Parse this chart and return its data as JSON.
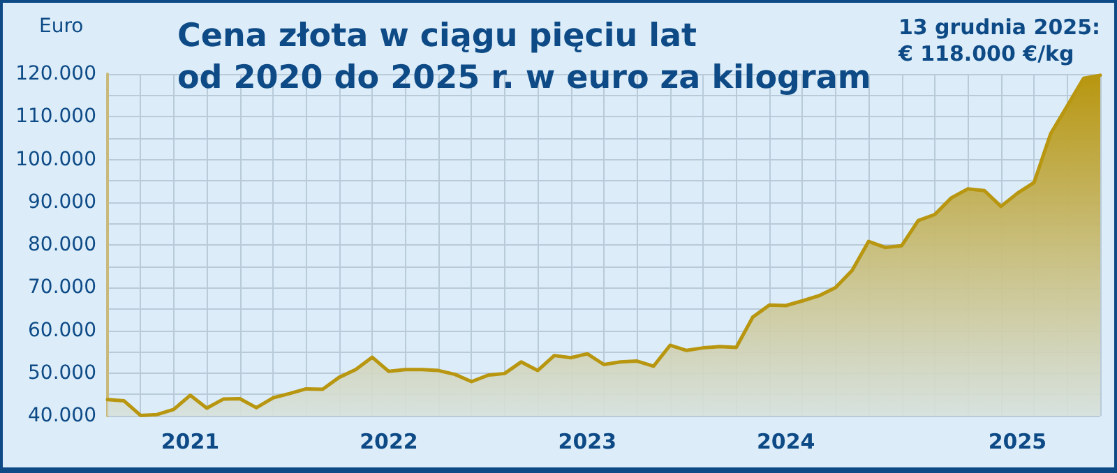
{
  "chart_data": {
    "type": "area",
    "title": "Cena złota w ciągu pięciu lat\nod 2020 do 2025 r. w euro za kilogram",
    "ylabel": "Euro",
    "annotations": [
      "13 grudnia 2025:\n€ 118.000 €/kg"
    ],
    "categories": [
      null,
      null,
      null,
      null,
      null,
      "2021",
      null,
      null,
      null,
      null,
      null,
      null,
      null,
      null,
      null,
      null,
      null,
      "2022",
      null,
      null,
      null,
      null,
      null,
      null,
      null,
      null,
      null,
      null,
      null,
      "2023",
      null,
      null,
      null,
      null,
      null,
      null,
      null,
      null,
      null,
      null,
      null,
      "2024",
      null,
      null,
      null,
      null,
      null,
      null,
      null,
      null,
      null,
      null,
      null,
      null,
      null,
      "2025",
      null,
      null,
      null,
      null,
      null
    ],
    "series": [
      {
        "color": "#b8960f",
        "values": [
          43800,
          43500,
          40100,
          40300,
          41500,
          44800,
          41800,
          43900,
          44000,
          41900,
          44200,
          45200,
          46300,
          46200,
          49000,
          50800,
          53700,
          50400,
          50800,
          50800,
          50600,
          49700,
          48000,
          49500,
          49900,
          52600,
          50600,
          54100,
          53600,
          54500,
          52000,
          52600,
          52800,
          51600,
          56500,
          55300,
          55900,
          56200,
          56000,
          63100,
          65900,
          65800,
          66900,
          68100,
          70000,
          74000,
          80800,
          79400,
          79800,
          85700,
          87100,
          91000,
          93100,
          92700,
          89000,
          92100,
          94600,
          106000,
          112500,
          119000,
          119700
        ]
      }
    ],
    "ylim": [
      40000,
      120000
    ],
    "yticks": [
      {
        "value": 40000,
        "label": "40.000"
      },
      {
        "value": 45000,
        "label": null
      },
      {
        "value": 50000,
        "label": "50.000"
      },
      {
        "value": 55000,
        "label": null
      },
      {
        "value": 60000,
        "label": "60.000"
      },
      {
        "value": 65000,
        "label": null
      },
      {
        "value": 70000,
        "label": "70.000"
      },
      {
        "value": 75000,
        "label": null
      },
      {
        "value": 80000,
        "label": "80.000"
      },
      {
        "value": 85000,
        "label": null
      },
      {
        "value": 90000,
        "label": "90.000"
      },
      {
        "value": 95000,
        "label": null
      },
      {
        "value": 100000,
        "label": "100.000"
      },
      {
        "value": 105000,
        "label": null
      },
      {
        "value": 110000,
        "label": "110.000"
      },
      {
        "value": 115000,
        "label": null
      },
      {
        "value": 120000,
        "label": "120.000"
      }
    ],
    "grid": true,
    "marker": "none",
    "line_style": "solid"
  }
}
